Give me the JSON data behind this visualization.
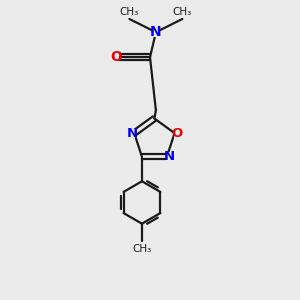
{
  "bg_color": "#ebebeb",
  "bond_color": "#1a1a1a",
  "N_color": "#0000ee",
  "O_color": "#ee0000",
  "line_width": 1.6,
  "font_size": 9.5,
  "small_font": 8.0,
  "xlim": [
    0,
    10
  ],
  "ylim": [
    0,
    10
  ],
  "figsize": [
    3.0,
    3.0
  ],
  "dpi": 100
}
